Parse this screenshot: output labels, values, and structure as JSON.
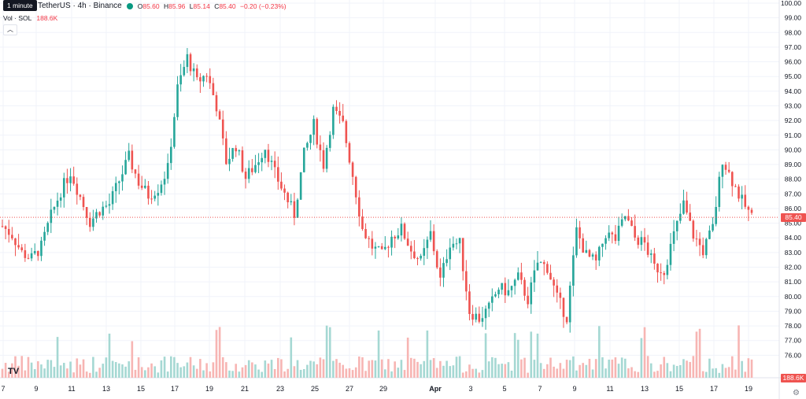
{
  "tooltip": "1 minute",
  "header": {
    "symbol": "TetherUS · 4h · Binance",
    "open_label": "O",
    "open": "85.60",
    "high_label": "H",
    "high": "85.96",
    "low_label": "L",
    "low": "85.14",
    "close_label": "C",
    "close": "85.40",
    "change": "−0.20 (−0.23%)"
  },
  "volume": {
    "label": "Vol · SOL",
    "value": "188.6K"
  },
  "collapse_icon": "chevron-up-icon",
  "logo": "TV",
  "settings_icon": "gear-icon",
  "colors": {
    "up": "#26a69a",
    "down": "#ef5350",
    "vol_up": "#a5d8d3",
    "vol_down": "#f7b5b3",
    "last": "#ef5350",
    "volume_tag": "#ef5350"
  },
  "chart_data": {
    "type": "candlestick",
    "ylim": [
      75,
      100
    ],
    "yticks": [
      "100.00",
      "99.00",
      "98.00",
      "97.00",
      "96.00",
      "95.00",
      "94.00",
      "93.00",
      "92.00",
      "91.00",
      "90.00",
      "89.00",
      "88.00",
      "87.00",
      "86.00",
      "85.00",
      "84.00",
      "83.00",
      "82.00",
      "81.00",
      "80.00",
      "79.00",
      "78.00",
      "77.00",
      "76.00"
    ],
    "xticks": [
      "7",
      "9",
      "11",
      "13",
      "15",
      "17",
      "19",
      "21",
      "23",
      "25",
      "27",
      "29",
      "Apr",
      "3",
      "5",
      "7",
      "9",
      "11",
      "13",
      "15",
      "17",
      "19"
    ],
    "last_price": "85.40",
    "last_volume": "188.6K",
    "closes": [
      84.8,
      84.2,
      83.0,
      82.6,
      83.4,
      85.5,
      87.2,
      88.5,
      86.8,
      85.1,
      85.9,
      86.3,
      87.9,
      89.5,
      87.8,
      86.9,
      87.4,
      88.7,
      94.2,
      96.3,
      94.6,
      95.2,
      93.0,
      89.2,
      90.3,
      88.1,
      89.0,
      90.2,
      88.4,
      87.0,
      85.6,
      89.7,
      91.7,
      89.0,
      92.7,
      91.7,
      88.3,
      84.6,
      83.4,
      82.8,
      84.1,
      84.6,
      83.2,
      82.4,
      84.3,
      81.1,
      83.7,
      83.6,
      79.0,
      78.5,
      79.2,
      80.6,
      80.3,
      81.3,
      79.8,
      82.3,
      82.0,
      79.9,
      78.6,
      84.5,
      82.8,
      82.3,
      84.3,
      83.9,
      85.5,
      84.0,
      83.6,
      82.0,
      81.8,
      84.2,
      86.3,
      84.2,
      83.1,
      84.7,
      89.4,
      87.9,
      86.5,
      85.4
    ]
  }
}
